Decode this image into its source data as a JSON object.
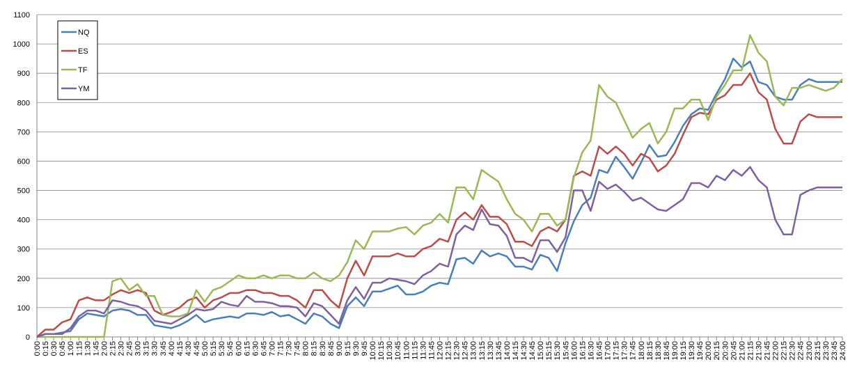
{
  "chart_data": {
    "type": "line",
    "categories": [
      "0:00",
      "0:15",
      "0:30",
      "0:45",
      "1:00",
      "1:15",
      "1:30",
      "1:45",
      "2:00",
      "2:15",
      "2:30",
      "2:45",
      "3:00",
      "3:15",
      "3:30",
      "3:45",
      "4:00",
      "4:15",
      "4:30",
      "4:45",
      "5:00",
      "5:15",
      "5:30",
      "5:45",
      "6:00",
      "6:15",
      "6:30",
      "6:45",
      "7:00",
      "7:15",
      "7:30",
      "7:45",
      "8:00",
      "8:15",
      "8:30",
      "8:45",
      "9:00",
      "9:15",
      "9:30",
      "9:45",
      "10:00",
      "10:15",
      "10:30",
      "10:45",
      "11:00",
      "11:15",
      "11:30",
      "11:45",
      "12:00",
      "12:15",
      "12:30",
      "12:45",
      "13:00",
      "13:15",
      "13:30",
      "13:45",
      "14:00",
      "14:15",
      "14:30",
      "14:45",
      "15:00",
      "15:15",
      "15:30",
      "15:45",
      "16:00",
      "16:15",
      "16:30",
      "16:45",
      "17:00",
      "17:15",
      "17:30",
      "17:45",
      "18:00",
      "18:15",
      "18:30",
      "18:45",
      "19:00",
      "19:15",
      "19:30",
      "19:45",
      "20:00",
      "20:15",
      "20:30",
      "20:45",
      "21:00",
      "21:15",
      "21:30",
      "21:45",
      "22:00",
      "22:15",
      "22:30",
      "22:45",
      "23:00",
      "23:15",
      "23:30",
      "23:45",
      "24:00"
    ],
    "series": [
      {
        "name": "NQ",
        "color": "#4a7ebb",
        "values": [
          0,
          10,
          10,
          15,
          20,
          60,
          80,
          75,
          70,
          90,
          95,
          90,
          75,
          75,
          40,
          35,
          30,
          40,
          55,
          75,
          50,
          60,
          65,
          70,
          65,
          80,
          80,
          75,
          85,
          70,
          75,
          60,
          45,
          80,
          70,
          45,
          30,
          105,
          135,
          105,
          155,
          155,
          165,
          175,
          145,
          145,
          155,
          175,
          185,
          180,
          265,
          270,
          250,
          295,
          275,
          285,
          275,
          240,
          240,
          230,
          280,
          270,
          225,
          320,
          395,
          450,
          475,
          570,
          560,
          615,
          580,
          540,
          595,
          655,
          615,
          620,
          665,
          720,
          760,
          780,
          775,
          830,
          880,
          950,
          920,
          940,
          870,
          860,
          820,
          810,
          810,
          860,
          880,
          870,
          870,
          870,
          870
        ]
      },
      {
        "name": "ES",
        "color": "#be4b48",
        "values": [
          0,
          25,
          25,
          50,
          60,
          125,
          135,
          125,
          125,
          145,
          160,
          150,
          160,
          150,
          90,
          75,
          85,
          100,
          125,
          135,
          100,
          125,
          135,
          150,
          150,
          160,
          160,
          150,
          150,
          140,
          140,
          125,
          100,
          160,
          160,
          125,
          100,
          200,
          260,
          210,
          275,
          275,
          275,
          285,
          275,
          275,
          300,
          310,
          335,
          325,
          400,
          425,
          400,
          450,
          410,
          410,
          385,
          325,
          325,
          310,
          360,
          375,
          360,
          400,
          550,
          565,
          550,
          650,
          625,
          650,
          625,
          585,
          625,
          610,
          565,
          585,
          625,
          690,
          750,
          765,
          760,
          810,
          825,
          860,
          860,
          900,
          835,
          810,
          710,
          660,
          660,
          735,
          760,
          750,
          750,
          750,
          750
        ]
      },
      {
        "name": "TF",
        "color": "#98b954",
        "values": [
          0,
          0,
          0,
          0,
          0,
          0,
          0,
          0,
          0,
          190,
          200,
          160,
          180,
          140,
          140,
          75,
          70,
          70,
          80,
          160,
          120,
          160,
          170,
          190,
          210,
          200,
          200,
          210,
          200,
          210,
          210,
          200,
          200,
          220,
          200,
          190,
          210,
          255,
          330,
          300,
          360,
          360,
          360,
          370,
          375,
          350,
          380,
          390,
          420,
          390,
          510,
          510,
          470,
          570,
          550,
          530,
          470,
          420,
          400,
          360,
          420,
          420,
          380,
          400,
          545,
          630,
          670,
          860,
          820,
          800,
          740,
          680,
          710,
          730,
          660,
          700,
          780,
          780,
          810,
          810,
          740,
          820,
          860,
          910,
          910,
          1030,
          970,
          940,
          820,
          790,
          850,
          850,
          860,
          850,
          840,
          850,
          880
        ]
      },
      {
        "name": "YM",
        "color": "#7d60a0",
        "values": [
          0,
          10,
          10,
          10,
          30,
          70,
          90,
          90,
          80,
          125,
          120,
          110,
          105,
          90,
          55,
          50,
          45,
          60,
          75,
          95,
          90,
          95,
          120,
          110,
          105,
          140,
          120,
          120,
          115,
          105,
          105,
          100,
          70,
          115,
          105,
          75,
          45,
          125,
          170,
          130,
          185,
          185,
          200,
          195,
          190,
          180,
          210,
          225,
          250,
          240,
          350,
          380,
          365,
          435,
          385,
          380,
          345,
          270,
          270,
          255,
          330,
          330,
          290,
          340,
          500,
          500,
          430,
          530,
          505,
          520,
          495,
          465,
          475,
          455,
          435,
          430,
          450,
          470,
          525,
          525,
          510,
          550,
          535,
          570,
          550,
          580,
          535,
          510,
          400,
          350,
          350,
          485,
          500,
          510,
          510,
          510,
          510
        ]
      }
    ],
    "ylim": [
      0,
      1100
    ],
    "yticks": [
      0,
      100,
      200,
      300,
      400,
      500,
      600,
      700,
      800,
      900,
      1000,
      1100
    ],
    "grid": true,
    "legend": "upper-left"
  }
}
